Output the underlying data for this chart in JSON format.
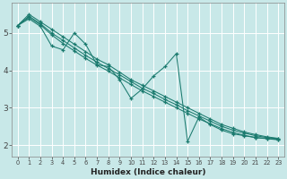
{
  "title": "",
  "xlabel": "Humidex (Indice chaleur)",
  "bg_color": "#c8e8e8",
  "grid_color": "#ffffff",
  "line_color": "#1a7a6e",
  "xlim": [
    -0.5,
    23.5
  ],
  "ylim": [
    1.7,
    5.8
  ],
  "xticks": [
    0,
    1,
    2,
    3,
    4,
    5,
    6,
    7,
    8,
    9,
    10,
    11,
    12,
    13,
    14,
    15,
    16,
    17,
    18,
    19,
    20,
    21,
    22,
    23
  ],
  "yticks": [
    2,
    3,
    4,
    5
  ],
  "lines": [
    {
      "x": [
        0,
        1,
        2,
        3,
        4,
        5,
        6,
        7,
        8,
        9,
        10,
        11,
        12,
        13,
        14,
        15,
        16,
        17,
        18,
        19,
        20,
        21,
        22,
        23
      ],
      "y": [
        5.2,
        5.5,
        5.3,
        5.1,
        4.9,
        4.7,
        4.5,
        4.3,
        4.15,
        3.95,
        3.75,
        3.6,
        3.45,
        3.3,
        3.15,
        3.0,
        2.85,
        2.7,
        2.55,
        2.45,
        2.35,
        2.28,
        2.22,
        2.18
      ]
    },
    {
      "x": [
        0,
        1,
        2,
        3,
        4,
        5,
        6,
        7,
        8,
        9,
        10,
        11,
        12,
        13,
        14,
        15,
        16,
        17,
        18,
        19,
        20,
        21,
        22,
        23
      ],
      "y": [
        5.2,
        5.45,
        5.25,
        5.0,
        4.8,
        4.6,
        4.4,
        4.22,
        4.05,
        3.88,
        3.7,
        3.52,
        3.38,
        3.22,
        3.08,
        2.92,
        2.78,
        2.64,
        2.5,
        2.4,
        2.32,
        2.25,
        2.2,
        2.17
      ]
    },
    {
      "x": [
        0,
        1,
        2,
        3,
        4,
        5,
        6,
        7,
        8,
        9,
        10,
        11,
        12,
        13,
        14,
        15,
        16,
        17,
        18,
        19,
        20,
        21,
        22,
        23
      ],
      "y": [
        5.2,
        5.42,
        5.22,
        4.95,
        4.72,
        4.52,
        4.32,
        4.14,
        3.98,
        3.8,
        3.62,
        3.45,
        3.3,
        3.15,
        3.0,
        2.85,
        2.7,
        2.57,
        2.44,
        2.34,
        2.26,
        2.2,
        2.17,
        2.14
      ]
    },
    {
      "x": [
        0,
        1,
        2,
        3,
        4,
        5,
        6,
        7,
        8,
        9,
        10,
        11,
        12,
        13,
        14,
        15,
        16,
        17,
        18,
        19,
        20,
        21,
        22,
        23
      ],
      "y": [
        5.2,
        5.38,
        5.18,
        4.65,
        4.55,
        5.0,
        4.7,
        4.15,
        4.1,
        3.75,
        3.25,
        3.5,
        3.85,
        4.1,
        4.45,
        2.1,
        2.75,
        2.55,
        2.4,
        2.3,
        2.25,
        2.2,
        2.18,
        2.15
      ]
    }
  ]
}
